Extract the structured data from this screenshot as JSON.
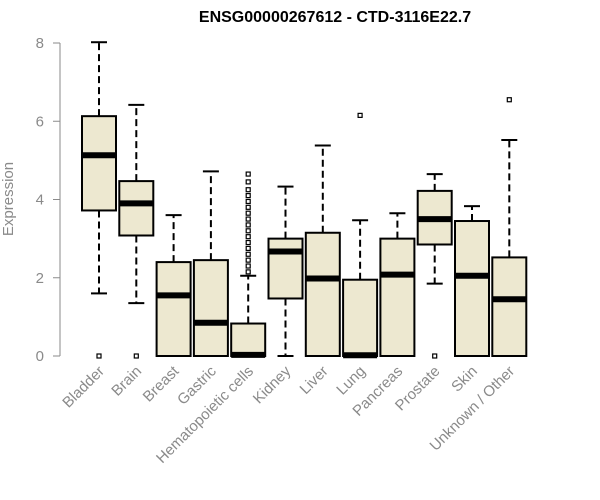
{
  "chart_data": {
    "type": "boxplot",
    "title": "ENSG00000267612 - CTD-3116E22.7",
    "ylabel": "Expression",
    "xlabel": "",
    "ylim": [
      0,
      8
    ],
    "yticks": [
      0,
      2,
      4,
      6,
      8
    ],
    "box_fill": "#ede8d0",
    "categories": [
      "Bladder",
      "Brain",
      "Breast",
      "Gastric",
      "Hematopoietic cells",
      "Kidney",
      "Liver",
      "Lung",
      "Pancreas",
      "Prostate",
      "Skin",
      "Unknown / Other"
    ],
    "boxes": [
      {
        "whisker_low": 1.6,
        "q1": 3.72,
        "median": 5.13,
        "q3": 6.13,
        "whisker_high": 8.02,
        "outliers": [
          0.0
        ]
      },
      {
        "whisker_low": 1.35,
        "q1": 3.08,
        "median": 3.9,
        "q3": 4.47,
        "whisker_high": 6.42,
        "outliers": [
          0.0
        ]
      },
      {
        "whisker_low": 0.0,
        "q1": 0.0,
        "median": 1.55,
        "q3": 2.4,
        "whisker_high": 3.6,
        "outliers": []
      },
      {
        "whisker_low": 0.0,
        "q1": 0.0,
        "median": 0.85,
        "q3": 2.45,
        "whisker_high": 4.72,
        "outliers": []
      },
      {
        "whisker_low": 0.0,
        "q1": 0.0,
        "median": 0.03,
        "q3": 0.83,
        "whisker_high": 2.05,
        "outliers": [
          2.15,
          2.3,
          2.45,
          2.6,
          2.75,
          2.9,
          3.05,
          3.2,
          3.35,
          3.5,
          3.65,
          3.8,
          3.95,
          4.1,
          4.25,
          4.45,
          4.65
        ]
      },
      {
        "whisker_low": 0.0,
        "q1": 1.47,
        "median": 2.67,
        "q3": 3.0,
        "whisker_high": 4.33,
        "outliers": []
      },
      {
        "whisker_low": 0.0,
        "q1": 0.0,
        "median": 1.98,
        "q3": 3.15,
        "whisker_high": 5.38,
        "outliers": []
      },
      {
        "whisker_low": 0.0,
        "q1": 0.0,
        "median": 0.02,
        "q3": 1.95,
        "whisker_high": 3.47,
        "outliers": [
          6.15
        ]
      },
      {
        "whisker_low": 0.0,
        "q1": 0.0,
        "median": 2.08,
        "q3": 3.0,
        "whisker_high": 3.65,
        "outliers": []
      },
      {
        "whisker_low": 1.85,
        "q1": 2.85,
        "median": 3.5,
        "q3": 4.22,
        "whisker_high": 4.65,
        "outliers": [
          0.0
        ]
      },
      {
        "whisker_low": 0.0,
        "q1": 0.0,
        "median": 2.05,
        "q3": 3.45,
        "whisker_high": 3.83,
        "outliers": []
      },
      {
        "whisker_low": 0.0,
        "q1": 0.0,
        "median": 1.45,
        "q3": 2.52,
        "whisker_high": 5.52,
        "outliers": [
          6.55
        ]
      }
    ]
  }
}
